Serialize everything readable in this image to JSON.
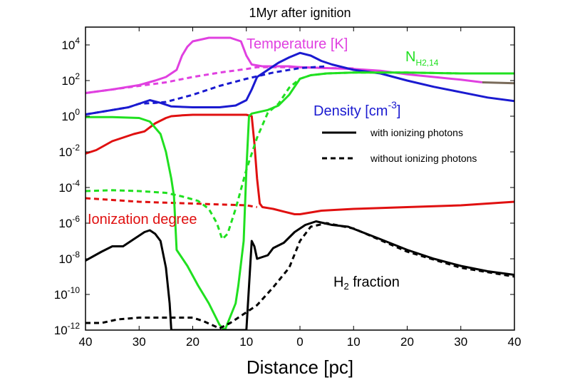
{
  "chart_data": {
    "type": "line",
    "title": "1Myr after ignition",
    "xlabel": "Distance [pc]",
    "ylabel": "",
    "x_tick_labels": [
      "40",
      "30",
      "20",
      "10",
      "0",
      "10",
      "20",
      "30",
      "40"
    ],
    "xlim": [
      -40,
      40
    ],
    "yscale": "log",
    "ylim_exp": [
      -12,
      5
    ],
    "y_ticks": [
      {
        "base": "10",
        "exp": "4"
      },
      {
        "base": "10",
        "exp": "2"
      },
      {
        "base": "10",
        "exp": "0"
      },
      {
        "base": "10",
        "exp": "-2"
      },
      {
        "base": "10",
        "exp": "-4"
      },
      {
        "base": "10",
        "exp": "-6"
      },
      {
        "base": "10",
        "exp": "-8"
      },
      {
        "base": "10",
        "exp": "-10"
      },
      {
        "base": "10",
        "exp": "-12"
      }
    ],
    "legend": {
      "placement": "right",
      "entries": [
        {
          "label": "with ionizing photons",
          "style": "solid"
        },
        {
          "label": "without ionizing photons",
          "style": "dashed"
        }
      ]
    },
    "annotations": {
      "temperature": "Temperature [K]",
      "nh2_base": "N",
      "nh2_sub": "H2,14",
      "density_base": "Density [cm",
      "density_sup": "-3",
      "density_end": "]",
      "ionization": "Ionization degree",
      "h2_prefix": "H",
      "h2_sub": "2",
      "h2_suffix": " fraction"
    },
    "series": [
      {
        "name": "Temperature [K]",
        "color": "#e040e0",
        "style": "solid",
        "x": [
          -40,
          -35,
          -30,
          -27,
          -25,
          -23,
          -22,
          -21,
          -20,
          -17,
          -13,
          -11,
          -10,
          -9,
          -7,
          -5,
          -2,
          0,
          5,
          10,
          15,
          20,
          25,
          30,
          34
        ],
        "y": [
          1.3,
          1.5,
          1.75,
          2.0,
          2.2,
          2.6,
          3.4,
          3.9,
          4.2,
          4.4,
          4.4,
          4.2,
          3.4,
          2.9,
          2.8,
          2.8,
          2.8,
          2.75,
          2.7,
          2.65,
          2.55,
          2.35,
          2.2,
          2.05,
          1.9
        ]
      },
      {
        "name": "Temperature [K]",
        "color": "#e040e0",
        "style": "dashed",
        "x": [
          -40,
          -30,
          -25,
          -20,
          -15,
          -10,
          -8,
          -5,
          0,
          5,
          10
        ],
        "y": [
          1.3,
          1.7,
          1.9,
          2.2,
          2.45,
          2.65,
          2.75,
          2.75,
          2.75,
          2.7,
          2.68
        ]
      },
      {
        "name": "Density [cm-3]",
        "color": "#1a1ad0",
        "style": "solid",
        "x": [
          -40,
          -35,
          -32,
          -30,
          -28,
          -26,
          -24,
          -20,
          -15,
          -12,
          -10,
          -9,
          -8,
          -6,
          -4,
          -2,
          0,
          2,
          4,
          6,
          10,
          15,
          20,
          25,
          30,
          35,
          40
        ],
        "y": [
          0.1,
          0.35,
          0.5,
          0.7,
          0.9,
          0.75,
          0.55,
          0.5,
          0.5,
          0.6,
          0.9,
          1.5,
          2.2,
          2.6,
          3.0,
          3.3,
          3.55,
          3.4,
          3.1,
          2.9,
          2.6,
          2.4,
          2.0,
          1.65,
          1.35,
          1.05,
          0.85
        ]
      },
      {
        "name": "Density [cm-3]",
        "color": "#1a1ad0",
        "style": "dashed",
        "x": [
          -40,
          -35,
          -32,
          -30,
          -27,
          -25,
          -20,
          -15,
          -10,
          -5,
          0,
          5
        ],
        "y": [
          0.1,
          0.35,
          0.5,
          0.7,
          0.75,
          0.8,
          1.2,
          1.7,
          2.1,
          2.45,
          2.7,
          2.8
        ]
      },
      {
        "name": "Ionization degree",
        "color": "#e01010",
        "style": "solid",
        "x": [
          -40,
          -38,
          -35,
          -33,
          -31,
          -29,
          -27,
          -25,
          -24,
          -22,
          -20,
          -15,
          -10,
          -9,
          -8.5,
          -8,
          -7.5,
          -7,
          -5,
          -3,
          -1,
          0,
          2,
          4,
          10,
          20,
          30,
          40
        ],
        "y": [
          -2.1,
          -1.9,
          -1.4,
          -1.2,
          -1.0,
          -0.85,
          -0.4,
          -0.1,
          0.0,
          0.05,
          0.08,
          0.08,
          0.08,
          0.0,
          -1.5,
          -3.5,
          -4.9,
          -5.1,
          -5.2,
          -5.35,
          -5.5,
          -5.5,
          -5.4,
          -5.3,
          -5.2,
          -5.1,
          -5.0,
          -4.8
        ]
      },
      {
        "name": "Ionization degree",
        "color": "#e01010",
        "style": "dashed",
        "x": [
          -40,
          -35,
          -30,
          -25,
          -20,
          -15,
          -10,
          -8
        ],
        "y": [
          -4.6,
          -4.7,
          -4.8,
          -4.85,
          -4.9,
          -4.95,
          -5.0,
          -5.1
        ]
      },
      {
        "name": "NH2,14",
        "color": "#20e020",
        "style": "solid",
        "x": [
          -40,
          -35,
          -30,
          -28,
          -26,
          -25,
          -24,
          -23.5,
          -23,
          -21,
          -19,
          -17,
          -15,
          -14,
          -12,
          -11.5,
          -10.5,
          -10,
          -9.5,
          -9,
          -6,
          -4,
          -2,
          0,
          2,
          5,
          10,
          20,
          30,
          40
        ],
        "y": [
          -0.05,
          -0.05,
          -0.1,
          -0.3,
          -1.0,
          -2.0,
          -3.5,
          -4.5,
          -7.5,
          -8.4,
          -9.5,
          -10.5,
          -11.7,
          -12.0,
          -10.5,
          -9.5,
          -7.0,
          -3.0,
          0.0,
          0.15,
          0.35,
          0.6,
          1.2,
          2.1,
          2.3,
          2.4,
          2.45,
          2.45,
          2.4,
          2.4
        ]
      },
      {
        "name": "NH2,14",
        "color": "#20e020",
        "style": "dashed",
        "x": [
          -40,
          -35,
          -30,
          -25,
          -22,
          -19,
          -17,
          -15.5,
          -14.5,
          -13.5,
          -12,
          -10,
          -8,
          -6,
          -4,
          -2,
          0,
          2,
          5
        ],
        "y": [
          -4.2,
          -4.15,
          -4.2,
          -4.3,
          -4.5,
          -4.75,
          -5.2,
          -6.0,
          -6.9,
          -6.6,
          -5.2,
          -3.0,
          -1.2,
          0.2,
          0.7,
          1.6,
          2.1,
          2.3,
          2.4
        ]
      },
      {
        "name": "H2 fraction",
        "color": "#000000",
        "style": "solid",
        "x": [
          -40,
          -37,
          -35,
          -33,
          -31,
          -30,
          -29,
          -28,
          -27,
          -26,
          -25,
          -24.3,
          -24,
          -10,
          -9.6,
          -9,
          -8.5,
          -8,
          -7,
          -6,
          -5,
          -3,
          -1,
          1,
          3,
          6,
          9,
          15,
          20,
          25,
          30,
          35,
          40
        ],
        "y": [
          -8.1,
          -7.6,
          -7.3,
          -7.3,
          -6.9,
          -6.7,
          -6.5,
          -6.4,
          -6.6,
          -7.0,
          -8.5,
          -10.5,
          -12.0,
          -12.0,
          -10.0,
          -7.0,
          -7.3,
          -8.0,
          -7.9,
          -7.8,
          -7.4,
          -7.1,
          -6.5,
          -6.1,
          -5.9,
          -6.1,
          -6.2,
          -6.9,
          -7.5,
          -8.0,
          -8.4,
          -8.7,
          -8.9
        ]
      },
      {
        "name": "H2 fraction",
        "color": "#000000",
        "style": "dashed",
        "x": [
          -40,
          -37,
          -34,
          -30,
          -25,
          -20,
          -18,
          -15,
          -13,
          -10,
          -8,
          -5,
          -2,
          0,
          2,
          5,
          10,
          20,
          30,
          40
        ],
        "y": [
          -11.6,
          -11.6,
          -11.4,
          -11.3,
          -11.3,
          -11.3,
          -11.5,
          -11.9,
          -11.6,
          -11.0,
          -10.6,
          -9.6,
          -8.5,
          -7.0,
          -6.2,
          -6.0,
          -6.3,
          -7.6,
          -8.5,
          -9.0
        ]
      },
      {
        "name": "",
        "color": "#7a6b5a",
        "style": "solid",
        "x": [
          34,
          40
        ],
        "y": [
          1.9,
          1.85
        ]
      },
      {
        "name": "",
        "color": "#20e020",
        "style": "dashed",
        "x": [
          5,
          10,
          15,
          20,
          30,
          40
        ],
        "y": [
          2.4,
          2.45,
          2.45,
          2.45,
          2.4,
          2.4
        ]
      }
    ]
  }
}
